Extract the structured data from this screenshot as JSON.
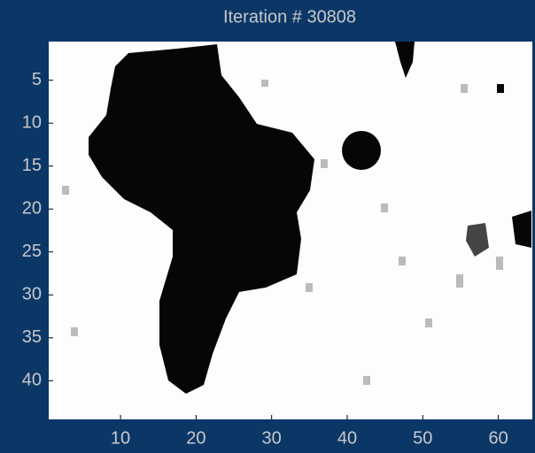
{
  "chart_data": {
    "type": "heatmap",
    "title": "Iteration # 30808",
    "xlim": [
      0.5,
      64.5
    ],
    "ylim": [
      0.5,
      44.5
    ],
    "xticks": [
      10,
      20,
      30,
      40,
      50,
      60
    ],
    "yticks": [
      5,
      10,
      15,
      20,
      25,
      30,
      35,
      40
    ]
  }
}
